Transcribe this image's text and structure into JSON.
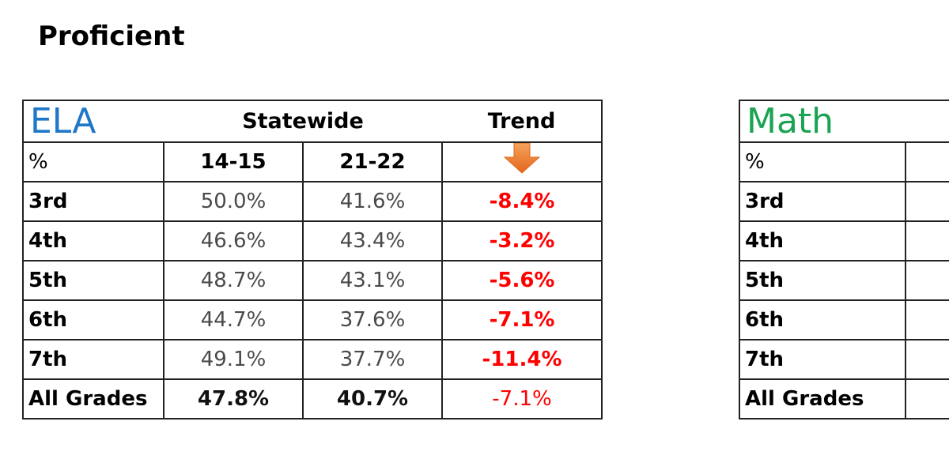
{
  "title": "Proficient",
  "ela": {
    "subject": "ELA",
    "header_group": "Statewide",
    "trend_header": "Trend",
    "pct_label": "%",
    "years": [
      "14-15",
      "21-22"
    ],
    "rows": [
      {
        "grade": "3rd",
        "y1": "50.0%",
        "y2": "41.6%",
        "delta": "-8.4%"
      },
      {
        "grade": "4th",
        "y1": "46.6%",
        "y2": "43.4%",
        "delta": "-3.2%"
      },
      {
        "grade": "5th",
        "y1": "48.7%",
        "y2": "43.1%",
        "delta": "-5.6%"
      },
      {
        "grade": "6th",
        "y1": "44.7%",
        "y2": "37.6%",
        "delta": "-7.1%"
      },
      {
        "grade": "7th",
        "y1": "49.1%",
        "y2": "37.7%",
        "delta": "-11.4%"
      }
    ],
    "total": {
      "grade": "All Grades",
      "y1": "47.8%",
      "y2": "40.7%",
      "delta": "-7.1%"
    },
    "trend_icon": "down-arrow-icon"
  },
  "math": {
    "subject": "Math",
    "pct_label": "%",
    "rows": [
      {
        "grade": "3rd"
      },
      {
        "grade": "4th"
      },
      {
        "grade": "5th"
      },
      {
        "grade": "6th"
      },
      {
        "grade": "7th"
      }
    ],
    "total": {
      "grade": "All Grades"
    }
  },
  "colors": {
    "ela_title": "#1f77c8",
    "math_title": "#1aa352",
    "negative": "#ff0000",
    "arrow": "#f07c2a"
  }
}
